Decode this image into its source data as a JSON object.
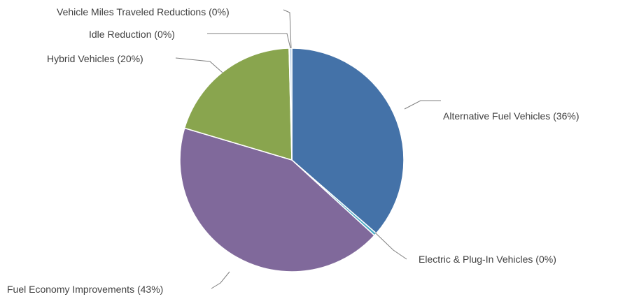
{
  "chart_data": {
    "type": "pie",
    "title": "",
    "slices": [
      {
        "label": "Alternative Fuel Vehicles (36%)",
        "value": 36.4,
        "color": "#4472a8"
      },
      {
        "label": "Electric & Plug-In Vehicles (0%)",
        "value": 0.4,
        "color": "#4bacc6"
      },
      {
        "label": "Fuel Economy Improvements (43%)",
        "value": 42.8,
        "color": "#80699b"
      },
      {
        "label": "Hybrid Vehicles (20%)",
        "value": 20.0,
        "color": "#89a54e"
      },
      {
        "label": "Idle Reduction (0%)",
        "value": 0.1,
        "color": "#4198af"
      },
      {
        "label": "Vehicle Miles Traveled Reductions (0%)",
        "value": 0.3,
        "color": "#aac6e2"
      }
    ]
  }
}
